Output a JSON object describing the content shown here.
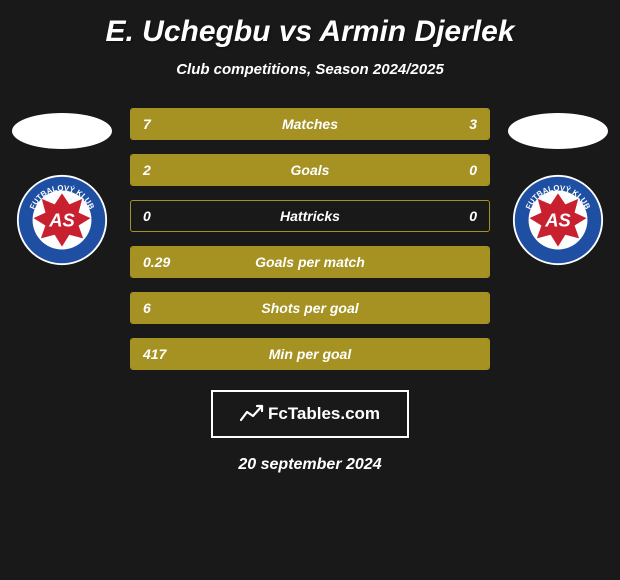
{
  "title": "E. Uchegbu vs Armin Djerlek",
  "subtitle": "Club competitions, Season 2024/2025",
  "date": "20 september 2024",
  "branding": {
    "text": "FcTables.com"
  },
  "colors": {
    "background": "#19191a",
    "bar_fill": "#a59223",
    "bar_border": "#a59223",
    "text": "#ffffff",
    "badge_blue": "#1e4fa3",
    "badge_red": "#c8202f",
    "badge_white": "#ffffff"
  },
  "club_badge": {
    "outer_text_top": "FUTBALOVÝ KLUB",
    "outer_text_bottom": "TRENČÍN",
    "inner_initials": "AS"
  },
  "stats": [
    {
      "label": "Matches",
      "left_val": "7",
      "right_val": "3",
      "left_num": 7,
      "right_num": 3,
      "left_pct": 70,
      "right_pct": 30
    },
    {
      "label": "Goals",
      "left_val": "2",
      "right_val": "0",
      "left_num": 2,
      "right_num": 0,
      "left_pct": 100,
      "right_pct": 0
    },
    {
      "label": "Hattricks",
      "left_val": "0",
      "right_val": "0",
      "left_num": 0,
      "right_num": 0,
      "left_pct": 0,
      "right_pct": 0
    },
    {
      "label": "Goals per match",
      "left_val": "0.29",
      "right_val": "",
      "left_num": 0.29,
      "right_num": null,
      "left_pct": 100,
      "right_pct": 0
    },
    {
      "label": "Shots per goal",
      "left_val": "6",
      "right_val": "",
      "left_num": 6,
      "right_num": null,
      "left_pct": 100,
      "right_pct": 0
    },
    {
      "label": "Min per goal",
      "left_val": "417",
      "right_val": "",
      "left_num": 417,
      "right_num": null,
      "left_pct": 100,
      "right_pct": 0
    }
  ]
}
